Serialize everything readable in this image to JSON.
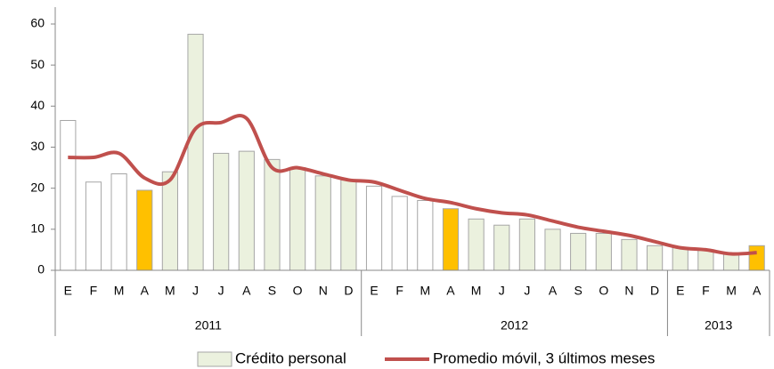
{
  "chart_data": {
    "type": "bar_line",
    "categories": [
      "E",
      "F",
      "M",
      "A",
      "M",
      "J",
      "J",
      "A",
      "S",
      "O",
      "N",
      "D",
      "E",
      "F",
      "M",
      "A",
      "M",
      "J",
      "J",
      "A",
      "S",
      "O",
      "N",
      "D",
      "E",
      "F",
      "M",
      "A"
    ],
    "groups": [
      {
        "label": "2011",
        "span": 12
      },
      {
        "label": "2012",
        "span": 12
      },
      {
        "label": "2013",
        "span": 4
      }
    ],
    "series": [
      {
        "name": "Crédito personal",
        "type": "bar",
        "color": "#ebf1de",
        "colors": [
          "#ffffff",
          "#ffffff",
          "#ffffff",
          "#ffc000",
          "#ebf1de",
          "#ebf1de",
          "#ebf1de",
          "#ebf1de",
          "#ebf1de",
          "#ebf1de",
          "#ebf1de",
          "#ebf1de",
          "#ffffff",
          "#ffffff",
          "#ffffff",
          "#ffc000",
          "#ebf1de",
          "#ebf1de",
          "#ebf1de",
          "#ebf1de",
          "#ebf1de",
          "#ebf1de",
          "#ebf1de",
          "#ebf1de",
          "#ebf1de",
          "#ebf1de",
          "#ebf1de",
          "#ffc000"
        ],
        "values": [
          36.5,
          21.5,
          23.5,
          19.5,
          24,
          57.5,
          28.5,
          29,
          27,
          25,
          23,
          22,
          20.5,
          18,
          17,
          15,
          12.5,
          11,
          12.5,
          10,
          9,
          9,
          7.5,
          6,
          5.5,
          5,
          4,
          6
        ]
      },
      {
        "name": "Promedio móvil, 3 últimos meses",
        "type": "line",
        "color": "#c0504d",
        "values": [
          27.5,
          27.5,
          28.5,
          22.5,
          22,
          34.5,
          36,
          37,
          25,
          25,
          23.5,
          22,
          21.5,
          19.5,
          17.5,
          16.5,
          15,
          14,
          13.5,
          12,
          10.5,
          9.5,
          8.5,
          7,
          5.5,
          5,
          4,
          4.3
        ]
      }
    ],
    "ylim": [
      0,
      60
    ],
    "yticks": [
      0,
      10,
      20,
      30,
      40,
      50,
      60
    ]
  }
}
